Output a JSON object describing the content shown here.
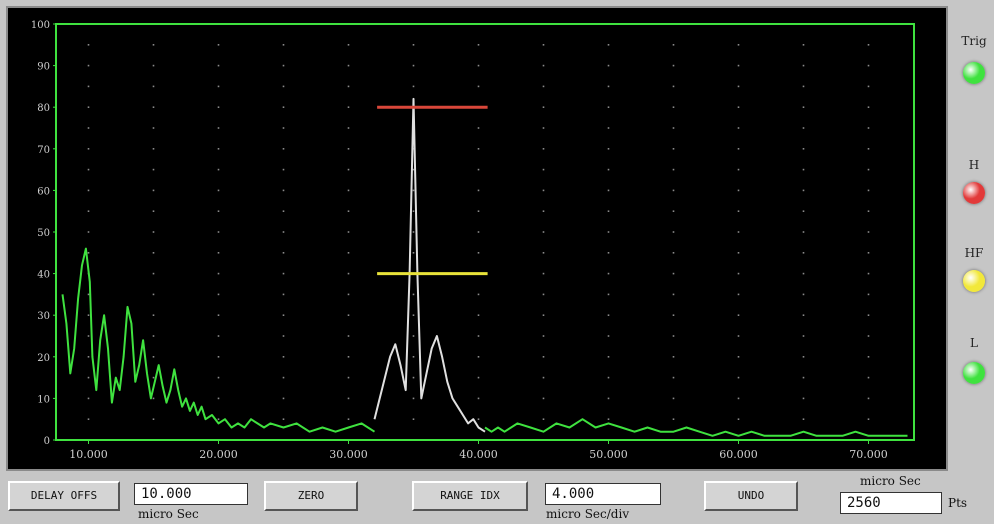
{
  "scope": {
    "chart_data": {
      "type": "line",
      "xlim": [
        7.5,
        73.5
      ],
      "ylim": [
        0,
        100
      ],
      "x_ticks": [
        "10.000",
        "20.000",
        "30.000",
        "40.000",
        "50.000",
        "60.000",
        "70.000"
      ],
      "y_ticks": [
        "0",
        "10",
        "20",
        "30",
        "40",
        "50",
        "60",
        "70",
        "80",
        "90",
        "100"
      ],
      "grid": "dotted",
      "series": [
        {
          "color": "#3fe23f",
          "x": [
            8.0,
            8.3,
            8.6,
            8.9,
            9.2,
            9.5,
            9.8,
            10.1,
            10.3,
            10.6,
            10.9,
            11.2,
            11.5,
            11.8,
            12.1,
            12.4,
            12.7,
            13.0,
            13.3,
            13.6,
            13.9,
            14.2,
            14.5,
            14.8,
            15.1,
            15.4,
            15.7,
            16.0,
            16.3,
            16.6,
            16.9,
            17.2,
            17.5,
            17.8,
            18.1,
            18.4,
            18.7,
            19.0,
            19.5,
            20.0,
            20.5,
            21.0,
            21.5,
            22.0,
            22.5,
            23.0,
            23.5,
            24.0,
            25.0,
            26.0,
            27.0,
            28.0,
            29.0,
            30.0,
            31.0,
            32.0
          ],
          "y": [
            35,
            28,
            16,
            22,
            34,
            42,
            46,
            38,
            20,
            12,
            24,
            30,
            22,
            9,
            15,
            12,
            20,
            32,
            28,
            14,
            18,
            24,
            16,
            10,
            14,
            18,
            13,
            9,
            12,
            17,
            12,
            8,
            10,
            7,
            9,
            6,
            8,
            5,
            6,
            4,
            5,
            3,
            4,
            3,
            5,
            4,
            3,
            4,
            3,
            4,
            2,
            3,
            2,
            3,
            4,
            2
          ]
        },
        {
          "color": "#3fe23f",
          "x": [
            40.5,
            41.0,
            41.5,
            42.0,
            43.0,
            44.0,
            45.0,
            46.0,
            47.0,
            48.0,
            49.0,
            50.0,
            51.0,
            52.0,
            53.0,
            54.0,
            55.0,
            56.0,
            57.0,
            58.0,
            59.0,
            60.0,
            61.0,
            62.0,
            63.0,
            64.0,
            65.0,
            66.0,
            67.0,
            68.0,
            69.0,
            70.0,
            71.0,
            72.0,
            73.0
          ],
          "y": [
            3,
            2,
            3,
            2,
            4,
            3,
            2,
            4,
            3,
            5,
            3,
            4,
            3,
            2,
            3,
            2,
            2,
            3,
            2,
            1,
            2,
            1,
            2,
            1,
            1,
            1,
            2,
            1,
            1,
            1,
            2,
            1,
            1,
            1,
            1
          ]
        },
        {
          "color": "#e0e0e0",
          "x": [
            32.0,
            32.4,
            32.8,
            33.2,
            33.6,
            34.0,
            34.4,
            34.7,
            35.0,
            35.3,
            35.6,
            36.0,
            36.4,
            36.8,
            37.2,
            37.6,
            38.0,
            38.4,
            38.8,
            39.2,
            39.6,
            40.0,
            40.5
          ],
          "y": [
            5,
            10,
            15,
            20,
            23,
            18,
            12,
            40,
            82,
            40,
            10,
            16,
            22,
            25,
            20,
            14,
            10,
            8,
            6,
            4,
            5,
            3,
            2
          ]
        }
      ],
      "gates": [
        {
          "color": "#d9473a",
          "x_start": 32.2,
          "x_end": 40.7,
          "y": 80
        },
        {
          "color": "#e8e23a",
          "x_start": 32.2,
          "x_end": 40.7,
          "y": 40
        }
      ]
    }
  },
  "indicators": [
    {
      "label": "Trig",
      "color": "#3fe23f"
    },
    {
      "label": "H",
      "color": "#e23a3a"
    },
    {
      "label": "HF",
      "color": "#f2e83a"
    },
    {
      "label": "L",
      "color": "#3fe23f"
    }
  ],
  "controls": {
    "delay_button": "DELAY OFFS",
    "delay_value": "10.000",
    "delay_unit": "micro Sec",
    "zero_button": "ZERO",
    "range_button": "RANGE IDX",
    "range_value": "4.000",
    "range_unit": "micro Sec/div",
    "undo_button": "UNDO",
    "top_unit": "micro Sec",
    "pts_value": "2560",
    "pts_unit": "Pts"
  }
}
